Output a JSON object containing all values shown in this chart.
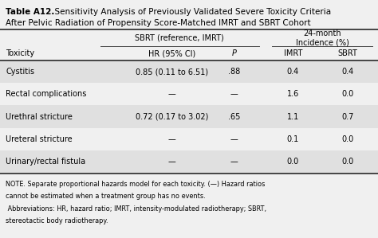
{
  "title_bold": "Table A12.",
  "title_rest": "  Sensitivity Analysis of Previously Validated Severe Toxicity Criteria After Pelvic Radiation of Propensity Score-Matched IMRT and SBRT Cohort",
  "title_line2": "After Pelvic Radiation of Propensity Score-Matched IMRT and SBRT Cohort",
  "col_header_group1": "SBRT (reference, IMRT)",
  "col_header_group2_line1": "24-month",
  "col_header_group2_line2": "Incidence (%)",
  "col_headers": [
    "Toxicity",
    "HR (95% CI)",
    "P",
    "IMRT",
    "SBRT"
  ],
  "rows": [
    [
      "Cystitis",
      "0.85 (0.11 to 6.51)",
      ".88",
      "0.4",
      "0.4"
    ],
    [
      "Rectal complications",
      "—",
      "—",
      "1.6",
      "0.0"
    ],
    [
      "Urethral stricture",
      "0.72 (0.17 to 3.02)",
      ".65",
      "1.1",
      "0.7"
    ],
    [
      "Ureteral stricture",
      "—",
      "—",
      "0.1",
      "0.0"
    ],
    [
      "Urinary/rectal fistula",
      "—",
      "—",
      "0.0",
      "0.0"
    ]
  ],
  "shaded_rows": [
    0,
    2,
    4
  ],
  "note_lines": [
    "NOTE. Separate proportional hazards model for each toxicity. (—) Hazard ratios",
    "cannot be estimated when a treatment group has no events.",
    " Abbreviations: HR, hazard ratio; IMRT, intensity-modulated radiotherapy; SBRT,",
    "stereotactic body radiotherapy."
  ],
  "bg_color": "#f0f0f0",
  "shade_color": "#e0e0e0",
  "text_color": "#000000",
  "border_color": "#444444",
  "fontsize_title": 7.5,
  "fontsize_header": 7.0,
  "fontsize_data": 7.0,
  "fontsize_note": 5.9
}
